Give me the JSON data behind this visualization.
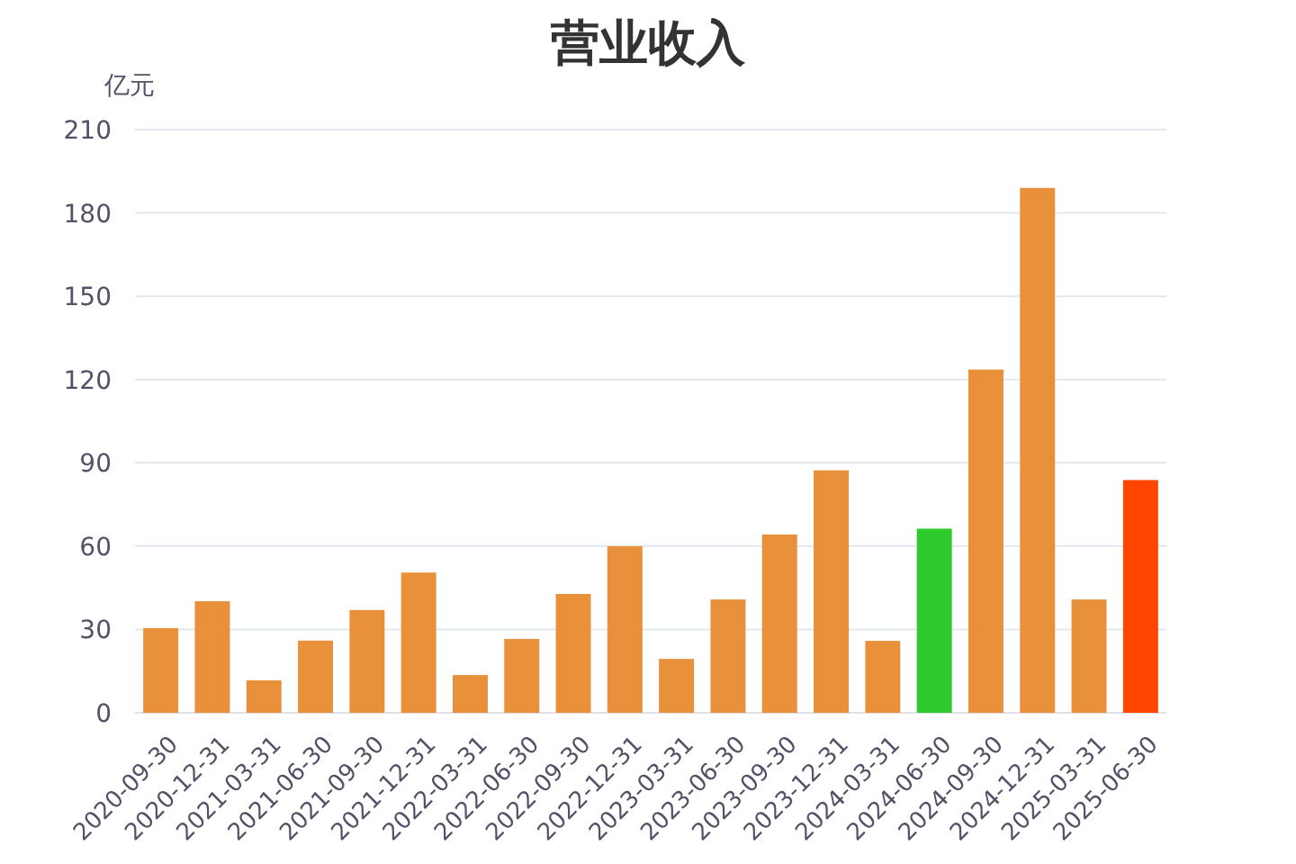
{
  "chart_data": {
    "type": "bar",
    "title": "营业收入",
    "ylabel": "亿元",
    "categories": [
      "2020-09-30",
      "2020-12-31",
      "2021-03-31",
      "2021-06-30",
      "2021-09-30",
      "2021-12-31",
      "2022-03-31",
      "2022-06-30",
      "2022-09-30",
      "2022-12-31",
      "2023-03-31",
      "2023-06-30",
      "2023-09-30",
      "2023-12-31",
      "2024-03-31",
      "2024-06-30",
      "2024-09-30",
      "2024-12-31",
      "2025-03-31",
      "2025-06-30"
    ],
    "values": [
      30.5,
      40.2,
      11.7,
      26,
      37,
      50.5,
      13.6,
      26.6,
      42.8,
      60,
      19.4,
      40.8,
      64.2,
      87.3,
      25.9,
      66.3,
      123.6,
      189,
      40.8,
      83.8
    ],
    "colors": [
      "#e8913a",
      "#e8913a",
      "#e8913a",
      "#e8913a",
      "#e8913a",
      "#e8913a",
      "#e8913a",
      "#e8913a",
      "#e8913a",
      "#e8913a",
      "#e8913a",
      "#e8913a",
      "#e8913a",
      "#e8913a",
      "#e8913a",
      "#2dc92d",
      "#e8913a",
      "#e8913a",
      "#e8913a",
      "#ff4500"
    ],
    "ylim": [
      0,
      210
    ],
    "yticks": [
      0,
      30,
      60,
      90,
      120,
      150,
      180,
      210
    ],
    "grid": "y"
  }
}
